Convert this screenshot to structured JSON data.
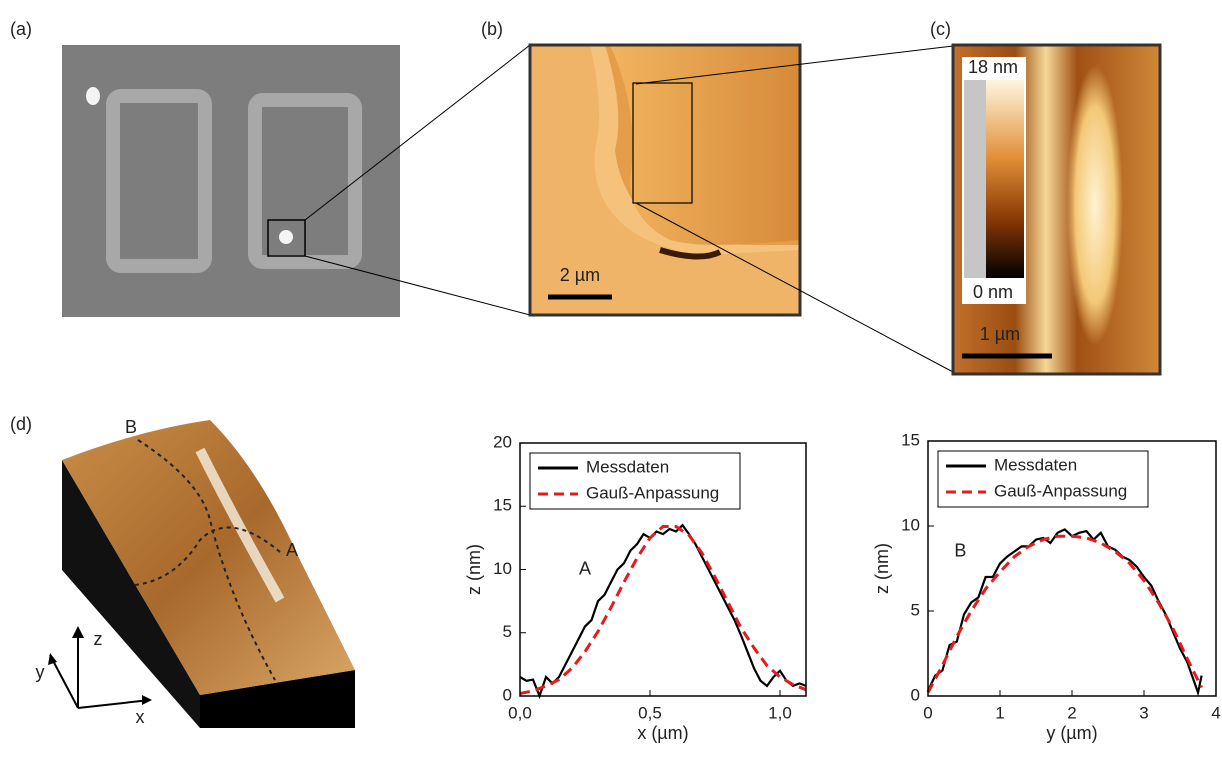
{
  "panel_labels": [
    "(a)",
    "(b)",
    "(c)",
    "(d)"
  ],
  "images": {
    "b": {
      "scale_bar": "2 µm"
    },
    "c": {
      "scale_bar": "1 µm",
      "colorbar_max": "18 nm",
      "colorbar_min": "0 nm"
    },
    "d": {
      "profile_b": "B",
      "profile_a": "A",
      "axis_z": "z",
      "axis_y": "y",
      "axis_x": "x"
    }
  },
  "chart_data": [
    {
      "type": "line",
      "xlabel": "x (µm)",
      "ylabel": "z (nm)",
      "annotation": {
        "text": "A",
        "x": 0.25,
        "y": 10
      },
      "xlim": [
        0,
        1.1
      ],
      "ylim": [
        0,
        20
      ],
      "xticks": [
        {
          "value": 0,
          "label": "0,0"
        },
        {
          "value": 0.5,
          "label": "0,5"
        },
        {
          "value": 1.0,
          "label": "1,0"
        }
      ],
      "yticks": [
        0,
        5,
        10,
        15,
        20
      ],
      "legend": "upper left",
      "series": [
        {
          "name": "Messdaten",
          "color": "#000000",
          "linestyle": "solid",
          "x": [
            0,
            0.025,
            0.05,
            0.075,
            0.1,
            0.125,
            0.15,
            0.175,
            0.2,
            0.225,
            0.25,
            0.275,
            0.3,
            0.325,
            0.35,
            0.375,
            0.4,
            0.425,
            0.45,
            0.475,
            0.5,
            0.525,
            0.55,
            0.575,
            0.6,
            0.625,
            0.65,
            0.675,
            0.7,
            0.725,
            0.75,
            0.775,
            0.8,
            0.825,
            0.85,
            0.875,
            0.9,
            0.925,
            0.95,
            0.975,
            1.0,
            1.025,
            1.05,
            1.075,
            1.1
          ],
          "values": [
            1.5,
            1.2,
            1.3,
            0,
            1.5,
            1.0,
            1.5,
            2.5,
            3.5,
            4.5,
            5.5,
            6,
            7.5,
            8,
            9,
            10,
            10.5,
            11.5,
            12,
            12.8,
            12.5,
            13,
            12.8,
            13.2,
            13.0,
            13.5,
            12.8,
            12,
            11,
            10,
            9,
            8,
            7,
            6,
            4.8,
            3.5,
            2.2,
            1.2,
            0.8,
            1.5,
            2,
            1.2,
            0.8,
            1,
            0.8
          ]
        },
        {
          "name": "Gauß-Anpassung",
          "color": "#e8191b",
          "linestyle": "dashed",
          "x": [
            0,
            0.05,
            0.1,
            0.15,
            0.2,
            0.25,
            0.3,
            0.35,
            0.4,
            0.45,
            0.5,
            0.55,
            0.6,
            0.65,
            0.7,
            0.75,
            0.8,
            0.85,
            0.9,
            0.95,
            1.0,
            1.05,
            1.1
          ],
          "values": [
            0.2,
            0.4,
            0.8,
            1.3,
            2.2,
            3.5,
            5.1,
            7.0,
            9.0,
            10.9,
            12.5,
            13.4,
            13.4,
            12.7,
            11.3,
            9.4,
            7.4,
            5.4,
            3.8,
            2.4,
            1.5,
            0.9,
            0.5
          ]
        }
      ]
    },
    {
      "type": "line",
      "xlabel": "y (µm)",
      "ylabel": "z (nm)",
      "annotation": {
        "text": "B",
        "x": 0.45,
        "y": 8.5
      },
      "xlim": [
        0,
        4
      ],
      "ylim": [
        0,
        15
      ],
      "xticks": [
        0,
        1,
        2,
        3,
        4
      ],
      "yticks": [
        0,
        5,
        10,
        15
      ],
      "legend": "upper left",
      "series": [
        {
          "name": "Messdaten",
          "color": "#000000",
          "linestyle": "solid",
          "x": [
            0,
            0.1,
            0.2,
            0.3,
            0.4,
            0.5,
            0.6,
            0.7,
            0.8,
            0.9,
            1.0,
            1.1,
            1.2,
            1.3,
            1.4,
            1.5,
            1.6,
            1.7,
            1.8,
            1.9,
            2.0,
            2.1,
            2.2,
            2.3,
            2.4,
            2.5,
            2.6,
            2.7,
            2.8,
            2.9,
            3.0,
            3.1,
            3.2,
            3.3,
            3.4,
            3.5,
            3.6,
            3.7,
            3.75,
            3.8
          ],
          "values": [
            0.3,
            1.2,
            1.5,
            3,
            3.2,
            4.8,
            5.5,
            5.8,
            7,
            7,
            7.8,
            8.2,
            8.5,
            8.8,
            8.8,
            9.2,
            9.3,
            9.0,
            9.6,
            9.8,
            9.4,
            9.6,
            9.7,
            9.2,
            9.6,
            8.8,
            8.6,
            8.2,
            8,
            7.6,
            7,
            6.5,
            5.6,
            4.8,
            3.8,
            2.8,
            2,
            0.8,
            0.2,
            1.2
          ]
        },
        {
          "name": "Gauß-Anpassung",
          "color": "#e8191b",
          "linestyle": "dashed",
          "x": [
            0,
            0.2,
            0.4,
            0.6,
            0.8,
            1.0,
            1.2,
            1.4,
            1.6,
            1.8,
            2.0,
            2.2,
            2.4,
            2.6,
            2.8,
            3.0,
            3.2,
            3.4,
            3.6,
            3.8
          ],
          "values": [
            0.2,
            1.8,
            3.5,
            5,
            6.3,
            7.3,
            8.2,
            8.8,
            9.2,
            9.4,
            9.4,
            9.3,
            9.0,
            8.5,
            7.8,
            6.8,
            5.5,
            4.0,
            2.2,
            0.5
          ]
        }
      ]
    }
  ]
}
